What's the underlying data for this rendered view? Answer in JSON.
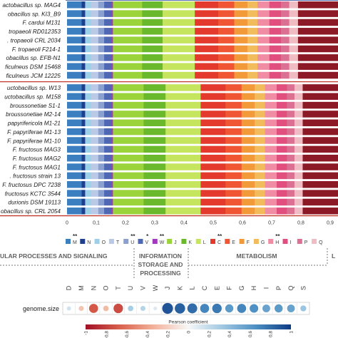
{
  "colors": {
    "cog": {
      "M": "#3b7fc0",
      "N": "#1f3f8c",
      "O": "#9bd0e8",
      "T": "#b9c9e6",
      "U": "#8aa0cf",
      "V": "#4f68b3",
      "W": "#a23ac0",
      "J": "#9ad33a",
      "K": "#6ab82c",
      "L": "#c5e55f",
      "C": "#e43a2e",
      "E": "#f05634",
      "F": "#f29a3a",
      "G": "#f2bb5c",
      "H": "#f08ca4",
      "I": "#e04f7e",
      "P": "#dc7092",
      "Q": "#f0bcc4",
      "S": "#8b1a26"
    },
    "divider": "#c0392b",
    "colorbar": [
      "#a11125",
      "#d9604c",
      "#f3b39b",
      "#f7f7f7",
      "#9fc8e2",
      "#4b8ec2",
      "#0d3b83"
    ]
  },
  "chart_data": [
    {
      "type": "bar",
      "subtype": "horizontal-stacked",
      "category_order": [
        "M",
        "N",
        "O",
        "T",
        "U",
        "V",
        "W",
        "J",
        "K",
        "L",
        "C",
        "E",
        "F",
        "G",
        "H",
        "I",
        "P",
        "Q",
        "S"
      ],
      "strains": [
        {
          "name": "actobacillus sp. MAG4",
          "values": [
            0.05,
            0.012,
            0.02,
            0.025,
            0.02,
            0.025,
            0.005,
            0.1,
            0.07,
            0.11,
            0.08,
            0.055,
            0.045,
            0.035,
            0.04,
            0.04,
            0.028,
            0.03,
            0.2
          ]
        },
        {
          "name": "obacillus sp. KI3_B9",
          "values": [
            0.05,
            0.012,
            0.02,
            0.025,
            0.02,
            0.025,
            0.005,
            0.1,
            0.07,
            0.11,
            0.08,
            0.055,
            0.045,
            0.035,
            0.04,
            0.04,
            0.028,
            0.03,
            0.2
          ]
        },
        {
          "name": "F. cardui M131",
          "values": [
            0.05,
            0.012,
            0.02,
            0.025,
            0.02,
            0.025,
            0.005,
            0.1,
            0.07,
            0.11,
            0.08,
            0.055,
            0.045,
            0.035,
            0.04,
            0.04,
            0.028,
            0.03,
            0.2
          ]
        },
        {
          "name": "tropaeoli RD012353",
          "values": [
            0.05,
            0.012,
            0.02,
            0.025,
            0.02,
            0.025,
            0.005,
            0.1,
            0.07,
            0.11,
            0.08,
            0.055,
            0.045,
            0.035,
            0.04,
            0.04,
            0.028,
            0.03,
            0.2
          ]
        },
        {
          "name": ". tropaeoli CRL 2034",
          "values": [
            0.05,
            0.012,
            0.02,
            0.025,
            0.02,
            0.025,
            0.005,
            0.1,
            0.07,
            0.11,
            0.08,
            0.055,
            0.045,
            0.035,
            0.04,
            0.04,
            0.028,
            0.03,
            0.2
          ]
        },
        {
          "name": "F. tropaeoli F214-1",
          "values": [
            0.05,
            0.012,
            0.02,
            0.025,
            0.02,
            0.025,
            0.005,
            0.1,
            0.07,
            0.11,
            0.08,
            0.055,
            0.045,
            0.035,
            0.04,
            0.04,
            0.028,
            0.03,
            0.2
          ]
        },
        {
          "name": "obacillus sp. EFB-N1",
          "values": [
            0.05,
            0.012,
            0.02,
            0.025,
            0.02,
            0.025,
            0.005,
            0.1,
            0.07,
            0.11,
            0.08,
            0.055,
            0.045,
            0.035,
            0.04,
            0.04,
            0.028,
            0.03,
            0.2
          ]
        },
        {
          "name": "ficulneus DSM 15468",
          "values": [
            0.05,
            0.012,
            0.02,
            0.025,
            0.02,
            0.025,
            0.005,
            0.1,
            0.07,
            0.11,
            0.08,
            0.055,
            0.045,
            0.035,
            0.04,
            0.04,
            0.028,
            0.03,
            0.2
          ]
        },
        {
          "name": "ficulneus JCM 12225",
          "values": [
            0.05,
            0.012,
            0.02,
            0.025,
            0.02,
            0.025,
            0.005,
            0.1,
            0.07,
            0.11,
            0.08,
            0.055,
            0.045,
            0.035,
            0.04,
            0.04,
            0.028,
            0.03,
            0.2
          ]
        },
        {
          "name": "uctobacillus sp. W13",
          "values": [
            0.05,
            0.012,
            0.02,
            0.025,
            0.02,
            0.025,
            0.005,
            0.105,
            0.075,
            0.12,
            0.085,
            0.055,
            0.045,
            0.035,
            0.04,
            0.035,
            0.026,
            0.028,
            0.174
          ]
        },
        {
          "name": "uctobacillus sp. M158",
          "values": [
            0.05,
            0.012,
            0.02,
            0.025,
            0.02,
            0.025,
            0.005,
            0.105,
            0.075,
            0.12,
            0.085,
            0.055,
            0.045,
            0.035,
            0.04,
            0.035,
            0.026,
            0.028,
            0.174
          ]
        },
        {
          "name": "broussonetiae S1-1",
          "values": [
            0.05,
            0.012,
            0.02,
            0.025,
            0.02,
            0.025,
            0.005,
            0.105,
            0.075,
            0.12,
            0.085,
            0.055,
            0.045,
            0.035,
            0.04,
            0.035,
            0.026,
            0.028,
            0.174
          ]
        },
        {
          "name": "broussonetiae M2-14",
          "values": [
            0.05,
            0.012,
            0.02,
            0.025,
            0.02,
            0.025,
            0.005,
            0.105,
            0.075,
            0.12,
            0.085,
            0.055,
            0.045,
            0.035,
            0.04,
            0.035,
            0.026,
            0.028,
            0.174
          ]
        },
        {
          "name": "papyrifericola M1-21",
          "values": [
            0.05,
            0.012,
            0.02,
            0.025,
            0.02,
            0.025,
            0.005,
            0.105,
            0.075,
            0.12,
            0.085,
            0.055,
            0.045,
            0.035,
            0.04,
            0.035,
            0.026,
            0.028,
            0.174
          ]
        },
        {
          "name": "F. papyriferae M1-13",
          "values": [
            0.05,
            0.012,
            0.02,
            0.025,
            0.02,
            0.025,
            0.005,
            0.105,
            0.075,
            0.12,
            0.085,
            0.055,
            0.045,
            0.035,
            0.04,
            0.035,
            0.026,
            0.028,
            0.174
          ]
        },
        {
          "name": "F. papyriferae M1-10",
          "values": [
            0.05,
            0.012,
            0.02,
            0.025,
            0.02,
            0.025,
            0.005,
            0.105,
            0.075,
            0.12,
            0.085,
            0.055,
            0.045,
            0.035,
            0.04,
            0.035,
            0.026,
            0.028,
            0.174
          ]
        },
        {
          "name": "F. fructosus MAG3",
          "values": [
            0.05,
            0.012,
            0.02,
            0.025,
            0.02,
            0.025,
            0.005,
            0.105,
            0.075,
            0.12,
            0.085,
            0.055,
            0.045,
            0.035,
            0.04,
            0.035,
            0.026,
            0.028,
            0.174
          ]
        },
        {
          "name": "F. fructosus MAG2",
          "values": [
            0.05,
            0.012,
            0.02,
            0.025,
            0.02,
            0.025,
            0.005,
            0.105,
            0.075,
            0.12,
            0.085,
            0.055,
            0.045,
            0.035,
            0.04,
            0.035,
            0.026,
            0.028,
            0.174
          ]
        },
        {
          "name": "F. fructosus MAG1",
          "values": [
            0.05,
            0.012,
            0.02,
            0.025,
            0.02,
            0.025,
            0.005,
            0.105,
            0.075,
            0.12,
            0.085,
            0.055,
            0.045,
            0.035,
            0.04,
            0.035,
            0.026,
            0.028,
            0.174
          ]
        },
        {
          "name": ". fructosus strain 13",
          "values": [
            0.05,
            0.012,
            0.02,
            0.025,
            0.02,
            0.025,
            0.005,
            0.105,
            0.075,
            0.12,
            0.085,
            0.055,
            0.045,
            0.035,
            0.04,
            0.035,
            0.026,
            0.028,
            0.174
          ]
        },
        {
          "name": "F. fructosus DPC 7238",
          "values": [
            0.05,
            0.012,
            0.02,
            0.025,
            0.02,
            0.025,
            0.005,
            0.105,
            0.075,
            0.12,
            0.085,
            0.055,
            0.045,
            0.035,
            0.04,
            0.035,
            0.026,
            0.028,
            0.174
          ]
        },
        {
          "name": "fructosus KCTC 3544",
          "values": [
            0.05,
            0.012,
            0.02,
            0.025,
            0.02,
            0.025,
            0.005,
            0.105,
            0.075,
            0.12,
            0.085,
            0.055,
            0.045,
            0.035,
            0.04,
            0.035,
            0.026,
            0.028,
            0.174
          ]
        },
        {
          "name": "durionis DSM 19113",
          "values": [
            0.05,
            0.012,
            0.02,
            0.025,
            0.02,
            0.025,
            0.005,
            0.105,
            0.075,
            0.12,
            0.085,
            0.055,
            0.045,
            0.035,
            0.04,
            0.035,
            0.026,
            0.028,
            0.174
          ]
        },
        {
          "name": "obacillus sp. CRL 2054",
          "values": [
            0.05,
            0.012,
            0.02,
            0.025,
            0.02,
            0.025,
            0.005,
            0.105,
            0.075,
            0.12,
            0.085,
            0.055,
            0.045,
            0.035,
            0.04,
            0.035,
            0.026,
            0.028,
            0.174
          ]
        }
      ],
      "group_split_after": 9,
      "xlim": [
        0,
        0.9
      ],
      "x_ticks": [
        "0",
        "0,1",
        "0,2",
        "0,3",
        "0,4",
        "0,5",
        "0,6",
        "0,7",
        "0,8",
        "0,9"
      ],
      "x_tick_values": [
        0,
        0.1,
        0.2,
        0.3,
        0.4,
        0.5,
        0.6,
        0.7,
        0.8,
        0.9
      ],
      "legend": [
        {
          "key": "M",
          "label": "M"
        },
        {
          "key": "N",
          "label": "N"
        },
        {
          "key": "O",
          "label": "O"
        },
        {
          "key": "T",
          "label": "T"
        },
        {
          "key": "U",
          "label": "U"
        },
        {
          "key": "V",
          "label": "V"
        },
        {
          "key": "W",
          "label": "W"
        },
        {
          "key": "J",
          "label": "J"
        },
        {
          "key": "K",
          "label": "K"
        },
        {
          "key": "L",
          "label": "L"
        },
        {
          "key": "C",
          "label": "C"
        },
        {
          "key": "E",
          "label": "E"
        },
        {
          "key": "F",
          "label": "F"
        },
        {
          "key": "G",
          "label": "G"
        },
        {
          "key": "H",
          "label": "H"
        },
        {
          "key": "I",
          "label": "I"
        },
        {
          "key": "P",
          "label": "P"
        },
        {
          "key": "Q",
          "label": "Q"
        }
      ],
      "significance_marks": [
        {
          "label": "**",
          "after": "M"
        },
        {
          "label": "**",
          "after": "U"
        },
        {
          "label": "*",
          "after": "V"
        },
        {
          "label": "**",
          "after": "W"
        },
        {
          "label": "**",
          "after": "C"
        },
        {
          "label": "**",
          "after": "H"
        }
      ],
      "categories_groups": [
        {
          "label": "ULAR PROCESSES AND SIGNALING"
        },
        {
          "label_lines": [
            "INFORMATION",
            "STORAGE AND",
            "PROCESSING"
          ]
        },
        {
          "label": "METABOLISM"
        },
        {
          "label": "L"
        }
      ]
    },
    {
      "type": "heatmap",
      "row_label": "genome.size",
      "columns": [
        "D",
        "M",
        "N",
        "O",
        "T",
        "U",
        "V",
        "W",
        "J",
        "K",
        "L",
        "C",
        "E",
        "F",
        "G",
        "H",
        "I",
        "P",
        "Q",
        "S"
      ],
      "values": [
        0.15,
        -0.25,
        -0.7,
        -0.3,
        -0.75,
        0.3,
        0.25,
        0.1,
        0.9,
        0.85,
        0.8,
        0.7,
        0.75,
        0.6,
        0.7,
        0.65,
        0.55,
        0.6,
        0.55,
        0.35
      ],
      "colorbar": {
        "title": "Pearson coefficient",
        "ticks": [
          "-1",
          "-0,8",
          "-0,6",
          "-0,4",
          "-0,2",
          "0",
          "0,2",
          "0,4",
          "0,6",
          "0,8",
          "1"
        ],
        "tick_values": [
          -1,
          -0.8,
          -0.6,
          -0.4,
          -0.2,
          0,
          0.2,
          0.4,
          0.6,
          0.8,
          1
        ],
        "range": [
          -1,
          1
        ]
      }
    }
  ]
}
